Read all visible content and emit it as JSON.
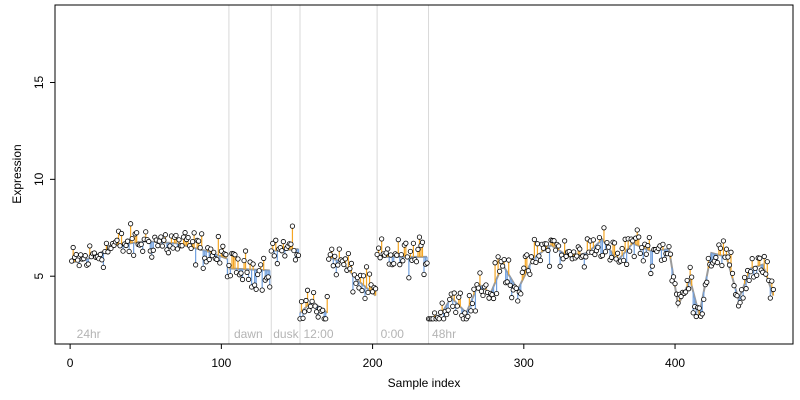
{
  "chart_data": {
    "type": "scatter",
    "xlabel": "Sample index",
    "ylabel": "Expression",
    "xlim": [
      -10,
      478
    ],
    "ylim": [
      1.5,
      19
    ],
    "x_ticks": [
      0,
      100,
      200,
      300,
      400
    ],
    "y_ticks": [
      5,
      10,
      15
    ],
    "phase_lines": [
      105,
      133,
      152,
      203,
      237
    ],
    "phase_labels": [
      {
        "x": 3,
        "text": "24hr"
      },
      {
        "x": 107,
        "text": "dawn"
      },
      {
        "x": 133,
        "text": "dusk"
      },
      {
        "x": 153,
        "text": "12:00"
      },
      {
        "x": 204,
        "text": "0:00"
      },
      {
        "x": 238,
        "text": "48hr"
      }
    ],
    "segment_anchors": [
      {
        "x0": 1,
        "x1": 104,
        "knots": [
          [
            1,
            5.7
          ],
          [
            12,
            5.9
          ],
          [
            30,
            6.6
          ],
          [
            50,
            6.8
          ],
          [
            70,
            6.7
          ],
          [
            90,
            6.3
          ],
          [
            104,
            5.9
          ]
        ]
      },
      {
        "x0": 105,
        "x1": 132,
        "knots": [
          [
            105,
            5.4
          ],
          [
            132,
            5.3
          ]
        ]
      },
      {
        "x0": 133,
        "x1": 151,
        "knots": [
          [
            133,
            6.3
          ],
          [
            151,
            6.4
          ]
        ]
      },
      {
        "x0": 152,
        "x1": 170,
        "knots": [
          [
            152,
            3.1
          ],
          [
            160,
            3.7
          ],
          [
            170,
            3.1
          ]
        ]
      },
      {
        "x0": 171,
        "x1": 202,
        "knots": [
          [
            171,
            6.0
          ],
          [
            180,
            5.7
          ],
          [
            190,
            4.8
          ],
          [
            202,
            4.0
          ]
        ]
      },
      {
        "x0": 203,
        "x1": 236,
        "knots": [
          [
            203,
            6.0
          ],
          [
            236,
            6.0
          ]
        ]
      },
      {
        "x0": 237,
        "x1": 465,
        "knots": [
          [
            237,
            2.8
          ],
          [
            245,
            3.0
          ],
          [
            252,
            3.9
          ],
          [
            262,
            3.1
          ],
          [
            270,
            4.6
          ],
          [
            278,
            4.1
          ],
          [
            286,
            5.6
          ],
          [
            296,
            4.3
          ],
          [
            306,
            5.9
          ],
          [
            318,
            6.6
          ],
          [
            330,
            6.0
          ],
          [
            342,
            6.2
          ],
          [
            352,
            6.9
          ],
          [
            362,
            5.8
          ],
          [
            372,
            6.7
          ],
          [
            384,
            6.3
          ],
          [
            396,
            6.4
          ],
          [
            402,
            3.5
          ],
          [
            410,
            4.8
          ],
          [
            416,
            3.0
          ],
          [
            424,
            6.2
          ],
          [
            434,
            6.0
          ],
          [
            442,
            3.8
          ],
          [
            450,
            5.4
          ],
          [
            458,
            5.6
          ],
          [
            465,
            4.0
          ]
        ]
      }
    ],
    "point_noise": 0.9,
    "point_count": 465,
    "colors": {
      "above": "#f5a623",
      "below": "#6f9fde",
      "fit_line": "#9a9a9a",
      "phase_line": "#d9d9d9",
      "point_stroke": "#000000",
      "point_fill": "#ffffff"
    }
  }
}
